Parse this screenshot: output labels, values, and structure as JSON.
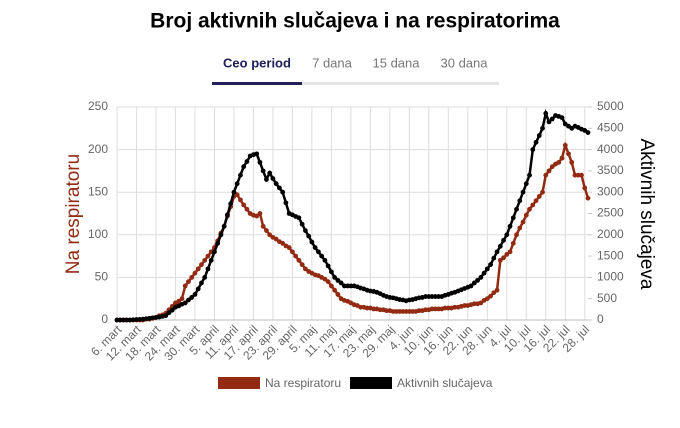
{
  "tabs": [
    "Ceo period",
    "7 dana",
    "15 dana",
    "30 dana"
  ],
  "chart_data": {
    "type": "line",
    "title": "Broj aktivnih slučajeva i na respiratorima",
    "ylabel": "Na respiratoru",
    "y2label": "Aktivnih slučajeva",
    "ylim": [
      0,
      250
    ],
    "yticks": [
      0,
      50,
      100,
      150,
      200,
      250
    ],
    "y2lim": [
      0,
      5000
    ],
    "y2ticks": [
      0,
      500,
      1000,
      1500,
      2000,
      2500,
      3000,
      3500,
      4000,
      4500,
      5000
    ],
    "grid": true,
    "categories": [
      "6. mart",
      null,
      null,
      null,
      null,
      null,
      "12. mart",
      null,
      null,
      null,
      null,
      null,
      "18. mart",
      null,
      null,
      null,
      null,
      null,
      "24. mart",
      null,
      null,
      null,
      null,
      null,
      "30. mart",
      null,
      null,
      null,
      null,
      null,
      "5. april",
      null,
      null,
      null,
      null,
      null,
      "11. april",
      null,
      null,
      null,
      null,
      null,
      "17. april",
      null,
      null,
      null,
      null,
      null,
      "23. april",
      null,
      null,
      null,
      null,
      null,
      "29. april",
      null,
      null,
      null,
      null,
      null,
      "5. maj",
      null,
      null,
      null,
      null,
      null,
      "11. maj",
      null,
      null,
      null,
      null,
      null,
      "17. maj",
      null,
      null,
      null,
      null,
      null,
      "23. maj",
      null,
      null,
      null,
      null,
      null,
      "29. maj",
      null,
      null,
      null,
      null,
      null,
      "4. jun",
      null,
      null,
      null,
      null,
      null,
      "10. jun",
      null,
      null,
      null,
      null,
      null,
      "16. jun",
      null,
      null,
      null,
      null,
      null,
      "22. jun",
      null,
      null,
      null,
      null,
      null,
      "28. jun",
      null,
      null,
      null,
      null,
      null,
      "4. jul",
      null,
      null,
      null,
      null,
      null,
      "10. jul",
      null,
      null,
      null,
      null,
      null,
      "16. jul",
      null,
      null,
      null,
      null,
      null,
      "22. jul",
      null,
      null,
      null,
      null,
      null,
      "28. jul",
      null
    ],
    "series": [
      {
        "name": "Na respiratoru",
        "color": "#922b12",
        "axis": "y",
        "values": [
          0,
          0,
          0,
          0,
          0,
          0,
          0,
          0,
          0,
          1,
          1,
          2,
          3,
          5,
          6,
          8,
          12,
          16,
          20,
          22,
          25,
          40,
          45,
          50,
          55,
          60,
          65,
          70,
          75,
          80,
          85,
          93,
          102,
          110,
          122,
          133,
          145,
          147,
          141,
          135,
          130,
          125,
          123,
          122,
          125,
          110,
          105,
          100,
          97,
          95,
          92,
          90,
          87,
          85,
          80,
          75,
          70,
          65,
          60,
          57,
          55,
          53,
          52,
          50,
          48,
          45,
          40,
          35,
          30,
          25,
          23,
          22,
          20,
          18,
          17,
          15,
          15,
          14,
          14,
          13,
          13,
          12,
          12,
          11,
          11,
          10,
          10,
          10,
          10,
          10,
          10,
          10,
          10,
          11,
          11,
          12,
          12,
          13,
          13,
          13,
          13,
          14,
          14,
          14,
          15,
          15,
          16,
          17,
          17,
          18,
          19,
          19,
          20,
          23,
          25,
          28,
          32,
          35,
          70,
          73,
          77,
          80,
          90,
          100,
          108,
          115,
          123,
          130,
          135,
          140,
          145,
          150,
          170,
          175,
          180,
          183,
          185,
          190,
          205,
          195,
          185,
          170,
          170,
          170,
          155,
          143
        ]
      },
      {
        "name": "Aktivnih slučajeva",
        "color": "#000000",
        "axis": "y2",
        "values": [
          0,
          0,
          0,
          0,
          0,
          5,
          10,
          15,
          20,
          30,
          40,
          50,
          60,
          70,
          85,
          100,
          170,
          230,
          300,
          330,
          370,
          400,
          470,
          530,
          600,
          730,
          870,
          1000,
          1200,
          1400,
          1600,
          1800,
          2000,
          2200,
          2470,
          2730,
          3000,
          3200,
          3400,
          3600,
          3720,
          3850,
          3880,
          3900,
          3700,
          3500,
          3300,
          3450,
          3320,
          3200,
          3100,
          3000,
          2750,
          2500,
          2470,
          2430,
          2400,
          2250,
          2100,
          1970,
          1830,
          1700,
          1600,
          1500,
          1400,
          1270,
          1130,
          1000,
          930,
          870,
          800,
          800,
          800,
          800,
          780,
          750,
          730,
          700,
          680,
          670,
          650,
          620,
          580,
          550,
          530,
          520,
          500,
          480,
          470,
          450,
          470,
          480,
          500,
          520,
          530,
          550,
          550,
          550,
          550,
          550,
          550,
          580,
          600,
          630,
          650,
          680,
          710,
          740,
          770,
          800,
          870,
          930,
          1000,
          1100,
          1200,
          1300,
          1450,
          1600,
          1730,
          1870,
          2000,
          2200,
          2400,
          2600,
          2800,
          3000,
          3200,
          3400,
          4000,
          4170,
          4330,
          4500,
          4850,
          4650,
          4720,
          4800,
          4780,
          4750,
          4600,
          4550,
          4500,
          4550,
          4520,
          4480,
          4450,
          4400
        ]
      }
    ]
  }
}
